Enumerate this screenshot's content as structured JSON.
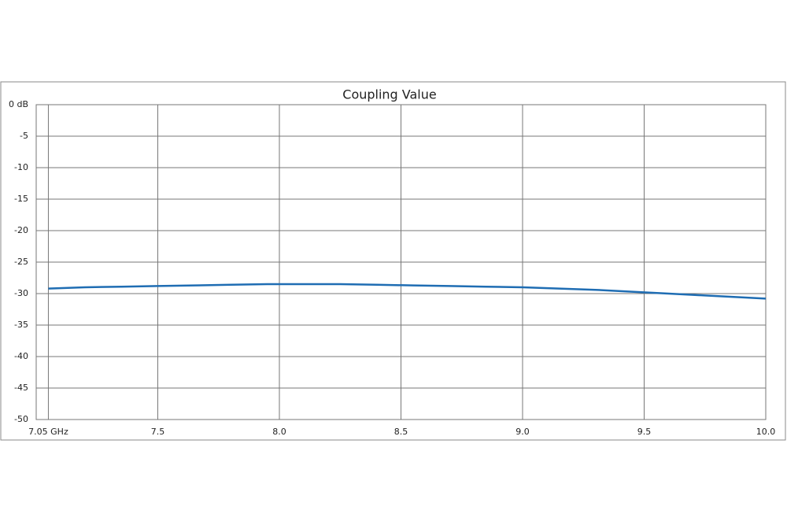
{
  "chart_data": {
    "type": "line",
    "title": "Coupling Value",
    "x": [
      7.05,
      7.2,
      7.35,
      7.5,
      7.65,
      7.8,
      7.95,
      8.1,
      8.25,
      8.4,
      8.55,
      8.7,
      8.85,
      9.0,
      9.15,
      9.3,
      9.45,
      9.6,
      9.75,
      9.9,
      10.0
    ],
    "series": [
      {
        "name": "Coupling",
        "color": "#1f6db3",
        "values": [
          -29.2,
          -29.0,
          -28.9,
          -28.8,
          -28.7,
          -28.6,
          -28.5,
          -28.5,
          -28.5,
          -28.6,
          -28.7,
          -28.8,
          -28.9,
          -29.0,
          -29.2,
          -29.4,
          -29.7,
          -30.0,
          -30.3,
          -30.6,
          -30.8
        ]
      }
    ],
    "xlim": [
      7.0,
      10.0
    ],
    "xticks": [
      {
        "value": 7.05,
        "label": "7.05 GHz"
      },
      7.5,
      {
        "value": 8.0,
        "label": "8.0"
      },
      8.5,
      {
        "value": 9.0,
        "label": "9.0"
      },
      9.5,
      {
        "value": 10.0,
        "label": "10.0"
      }
    ],
    "ylim": [
      -50,
      0
    ],
    "yticks": [
      {
        "value": 0,
        "label": "0 dB"
      },
      -5,
      -10,
      -15,
      -20,
      -25,
      -30,
      -35,
      -40,
      -45,
      -50
    ],
    "grid": true
  }
}
